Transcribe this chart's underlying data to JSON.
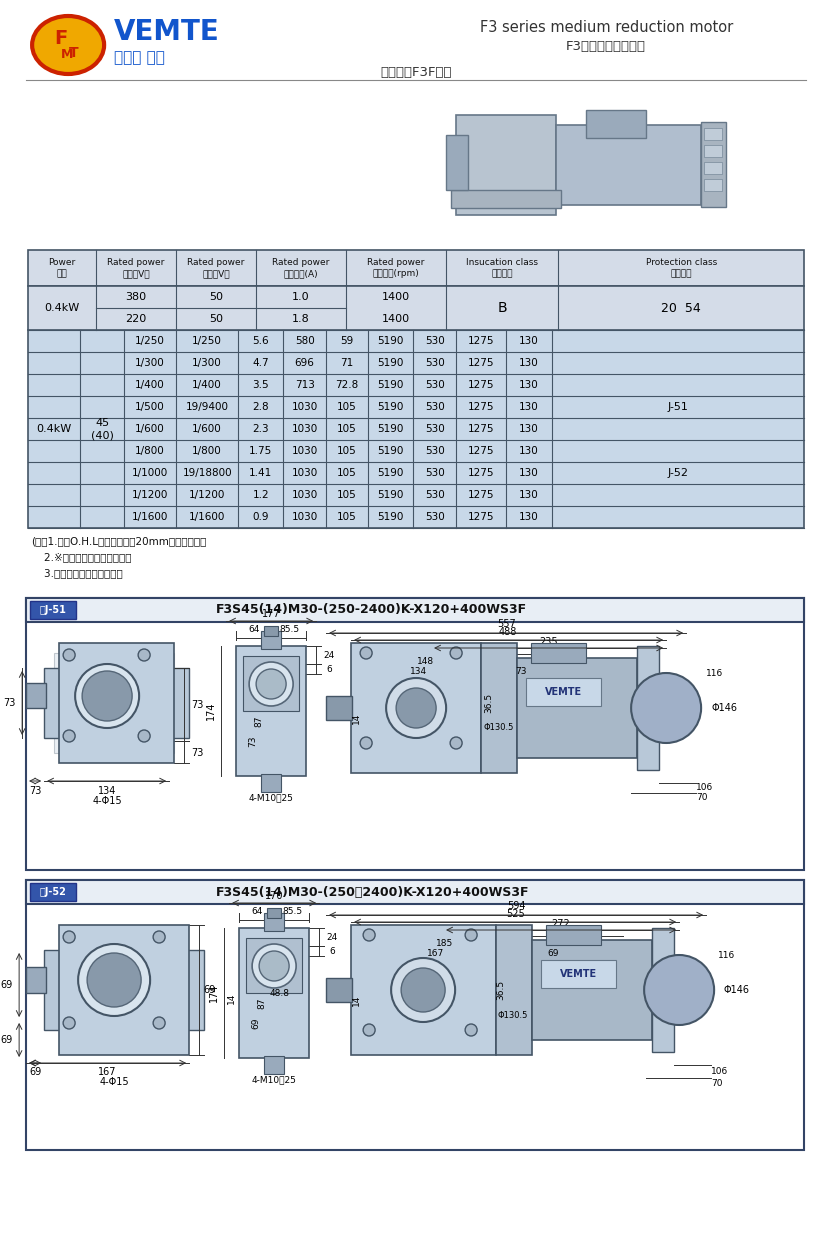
{
  "title_en": "F3 series medium reduction motor",
  "title_zh1": "F3系列中型減速電機",
  "title_zh2": "同心中實F3F系列",
  "brand": "VEMTE",
  "brand_zh": "減速机 電機",
  "bg_color": "#ffffff",
  "table_header_bg": "#d4dce8",
  "table_body_bg": "#c8d8e8",
  "table_border": "#445566",
  "notes": [
    "(注）1.容許O.H.L為輸出軸端面20mm位置的數値。",
    "    2.※標記為轉矩力受限機型。",
    "    3.括號（）為實心軸軸徑。"
  ],
  "fig_j51_label": "圖J-51",
  "fig_j51_title": "F3S45(14)M30-(250-2400)K-X120+400WS3F",
  "fig_j52_label": "圖J-52",
  "fig_j52_title": "F3S45(14)M30-(250～2400)K-X120+400WS3F",
  "data_rows": [
    [
      "1/250",
      "1/250",
      "5.6",
      "580",
      "59",
      "5190",
      "530",
      "1275",
      "130"
    ],
    [
      "1/300",
      "1/300",
      "4.7",
      "696",
      "71",
      "5190",
      "530",
      "1275",
      "130"
    ],
    [
      "1/400",
      "1/400",
      "3.5",
      "713",
      "72.8",
      "5190",
      "530",
      "1275",
      "130"
    ],
    [
      "1/500",
      "19/9400",
      "2.8",
      "1030",
      "105",
      "5190",
      "530",
      "1275",
      "130"
    ],
    [
      "1/600",
      "1/600",
      "2.3",
      "1030",
      "105",
      "5190",
      "530",
      "1275",
      "130"
    ],
    [
      "1/800",
      "1/800",
      "1.75",
      "1030",
      "105",
      "5190",
      "530",
      "1275",
      "130"
    ],
    [
      "1/1000",
      "19/18800",
      "1.41",
      "1030",
      "105",
      "5190",
      "530",
      "1275",
      "130"
    ],
    [
      "1/1200",
      "1/1200",
      "1.2",
      "1030",
      "105",
      "5190",
      "530",
      "1275",
      "130"
    ],
    [
      "1/1600",
      "1/1600",
      "0.9",
      "1030",
      "105",
      "5190",
      "530",
      "1275",
      "130"
    ]
  ]
}
